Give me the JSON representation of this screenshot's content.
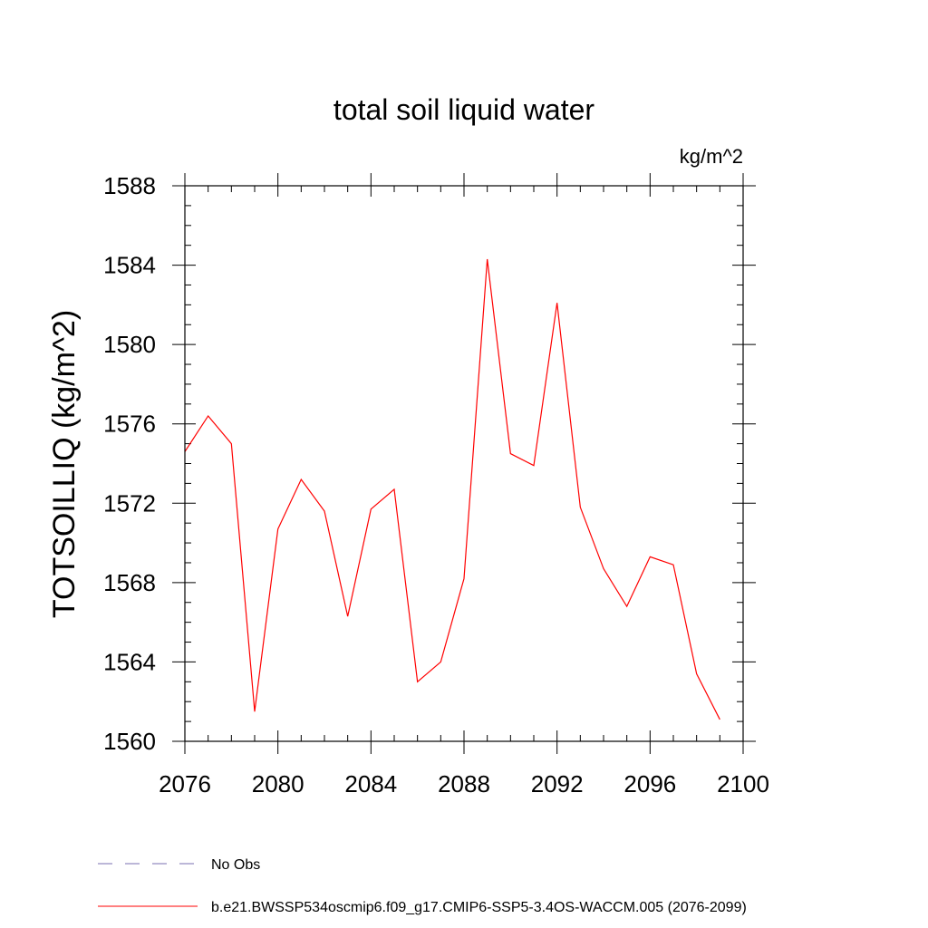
{
  "chart_data": {
    "type": "line",
    "title": "total soil liquid water",
    "units_label": "kg/m^2",
    "xlabel": "",
    "ylabel": "TOTSOILLIQ  (kg/m^2)",
    "xlim": [
      2076,
      2100
    ],
    "ylim": [
      1560,
      1588
    ],
    "x_ticks": [
      2076,
      2080,
      2084,
      2088,
      2092,
      2096,
      2100
    ],
    "y_ticks": [
      1560,
      1564,
      1568,
      1572,
      1576,
      1580,
      1584,
      1588
    ],
    "x_minor_step": 1,
    "y_minor_step": 1,
    "grid": false,
    "legend_position": "bottom-left",
    "series": [
      {
        "name": "b.e21.BWSSP534oscmip6.f09_g17.CMIP6-SSP5-3.4OS-WACCM.005 (2076-2099)",
        "color": "#ff0000",
        "style": "solid",
        "x": [
          2076,
          2077,
          2078,
          2079,
          2080,
          2081,
          2082,
          2083,
          2084,
          2085,
          2086,
          2087,
          2088,
          2089,
          2090,
          2091,
          2092,
          2093,
          2094,
          2095,
          2096,
          2097,
          2098,
          2099
        ],
        "values": [
          1574.6,
          1576.4,
          1575.0,
          1561.5,
          1570.7,
          1573.2,
          1571.6,
          1566.3,
          1571.7,
          1572.7,
          1563.0,
          1564.0,
          1568.2,
          1584.3,
          1574.5,
          1573.9,
          1582.1,
          1571.8,
          1568.7,
          1566.8,
          1569.3,
          1568.9,
          1563.4,
          1561.1
        ]
      }
    ],
    "legend": [
      {
        "label": "No Obs",
        "color": "#7a6fb0",
        "style": "dashed"
      },
      {
        "label": "b.e21.BWSSP534oscmip6.f09_g17.CMIP6-SSP5-3.4OS-WACCM.005 (2076-2099)",
        "color": "#ff0000",
        "style": "solid"
      }
    ]
  }
}
